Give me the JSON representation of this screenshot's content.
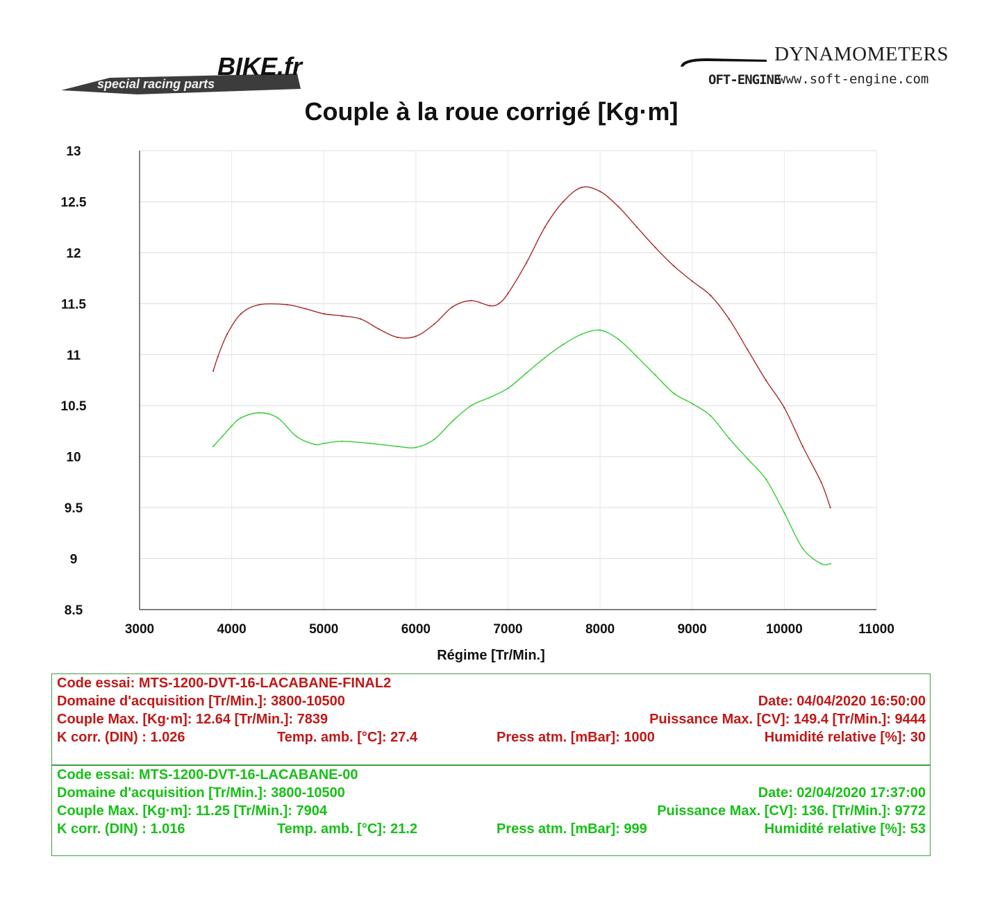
{
  "header": {
    "left_logo_text": "BIKE.fr",
    "left_logo_tagline": "special racing parts",
    "brand_name": "DYNAMOMETERS",
    "brand_sub": "OFT-ENGINE",
    "brand_url": "www.soft-engine.com"
  },
  "chart_data": {
    "type": "line",
    "title": "Couple à la roue corrigé [Kg·m]",
    "xlabel": "Régime [Tr/Min.]",
    "ylabel": "",
    "xlim": [
      3000,
      11000
    ],
    "ylim": [
      8.5,
      13
    ],
    "x_ticks": [
      3000,
      4000,
      5000,
      6000,
      7000,
      8000,
      9000,
      10000,
      11000
    ],
    "y_ticks": [
      8.5,
      9,
      9.5,
      10,
      10.5,
      11,
      11.5,
      12,
      12.5,
      13
    ],
    "grid": true,
    "legend": "none",
    "series": [
      {
        "color": "#a52a2a",
        "x": [
          3800,
          3850,
          3950,
          4100,
          4300,
          4600,
          4800,
          5000,
          5200,
          5400,
          5600,
          5800,
          6000,
          6200,
          6400,
          6600,
          6800,
          6900,
          7000,
          7200,
          7400,
          7600,
          7800,
          8000,
          8200,
          8400,
          8600,
          8800,
          9000,
          9200,
          9400,
          9600,
          9800,
          10000,
          10200,
          10400,
          10500
        ],
        "values": [
          10.84,
          10.98,
          11.2,
          11.4,
          11.49,
          11.49,
          11.45,
          11.4,
          11.38,
          11.35,
          11.25,
          11.17,
          11.18,
          11.3,
          11.47,
          11.53,
          11.48,
          11.5,
          11.6,
          11.9,
          12.25,
          12.5,
          12.64,
          12.6,
          12.45,
          12.25,
          12.05,
          11.87,
          11.72,
          11.58,
          11.35,
          11.05,
          10.75,
          10.48,
          10.1,
          9.75,
          9.5
        ]
      },
      {
        "color": "#33cc33",
        "x": [
          3800,
          3900,
          4000,
          4100,
          4300,
          4500,
          4700,
          4900,
          5000,
          5200,
          5500,
          5800,
          6000,
          6200,
          6400,
          6600,
          6800,
          7000,
          7200,
          7400,
          7600,
          7800,
          8000,
          8200,
          8400,
          8600,
          8800,
          9000,
          9200,
          9400,
          9600,
          9800,
          10000,
          10200,
          10400,
          10500
        ],
        "values": [
          10.1,
          10.2,
          10.3,
          10.38,
          10.43,
          10.38,
          10.2,
          10.12,
          10.13,
          10.15,
          10.13,
          10.1,
          10.09,
          10.17,
          10.35,
          10.5,
          10.58,
          10.67,
          10.82,
          10.97,
          11.1,
          11.2,
          11.24,
          11.15,
          10.98,
          10.8,
          10.62,
          10.52,
          10.4,
          10.18,
          9.98,
          9.78,
          9.45,
          9.1,
          8.95,
          8.95
        ]
      }
    ]
  },
  "test1": {
    "code": "Code essai: MTS-1200-DVT-16-LACABANE-FINAL2",
    "domain": "Domaine d'acquisition [Tr/Min.]: 3800-10500",
    "date": "Date: 04/04/2020   16:50:00",
    "couple": "Couple Max. [Kg·m]: 12.64   [Tr/Min.]: 7839",
    "puissance": "Puissance Max. [CV]: 149.4   [Tr/Min.]: 9444",
    "kcorr": "K corr. (DIN) : 1.026",
    "temp": "Temp. amb. [°C]: 27.4",
    "press": "Press atm. [mBar]: 1000",
    "humid": "Humidité relative [%]: 30"
  },
  "test2": {
    "code": "Code essai: MTS-1200-DVT-16-LACABANE-00",
    "domain": "Domaine d'acquisition [Tr/Min.]: 3800-10500",
    "date": "Date: 02/04/2020   17:37:00",
    "couple": "Couple Max. [Kg·m]: 11.25   [Tr/Min.]: 7904",
    "puissance": "Puissance Max. [CV]: 136.   [Tr/Min.]: 9772",
    "kcorr": "K corr. (DIN) : 1.016",
    "temp": "Temp. amb. [°C]: 21.2",
    "press": "Press atm. [mBar]: 999",
    "humid": "Humidité relative [%]: 53"
  }
}
